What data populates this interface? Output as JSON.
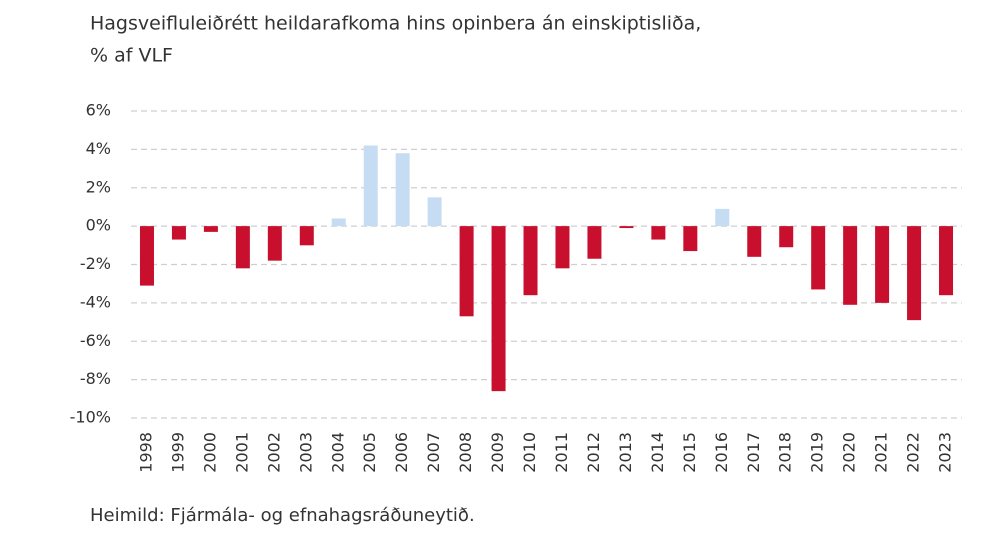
{
  "chart_data": {
    "type": "bar",
    "title": [
      "Hagsveifluleiðrétt heildarafkoma hins opinbera án einskiptisliða,",
      "% af VLF"
    ],
    "source": "Heimild: Fjármála- og efnahagsráðuneytið.",
    "categories": [
      "1998",
      "1999",
      "2000",
      "2001",
      "2002",
      "2003",
      "2004",
      "2005",
      "2006",
      "2007",
      "2008",
      "2009",
      "2010",
      "2011",
      "2012",
      "2013",
      "2014",
      "2015",
      "2016",
      "2017",
      "2018",
      "2019",
      "2020",
      "2021",
      "2022",
      "2023"
    ],
    "values": [
      -3.1,
      -0.7,
      -0.3,
      -2.2,
      -1.8,
      -1.0,
      0.4,
      4.2,
      3.8,
      1.5,
      -4.7,
      -8.6,
      -3.6,
      -2.2,
      -1.7,
      -0.1,
      -0.7,
      -1.3,
      0.9,
      -1.6,
      -1.1,
      -3.3,
      -4.1,
      -4.0,
      -4.9,
      -3.6
    ],
    "colors": {
      "positive": "#c6dcf3",
      "negative": "#c8102e"
    },
    "ylim": [
      -10,
      6
    ],
    "yticks": [
      {
        "value": -10,
        "label": "-10%"
      },
      {
        "value": -8,
        "label": "-8%"
      },
      {
        "value": -6,
        "label": "-6%"
      },
      {
        "value": -4,
        "label": "-4%"
      },
      {
        "value": -2,
        "label": "-2%"
      },
      {
        "value": 0,
        "label": "0%"
      },
      {
        "value": 2,
        "label": "2%"
      },
      {
        "value": 4,
        "label": "4%"
      },
      {
        "value": 6,
        "label": "6%"
      }
    ],
    "grid": true
  }
}
